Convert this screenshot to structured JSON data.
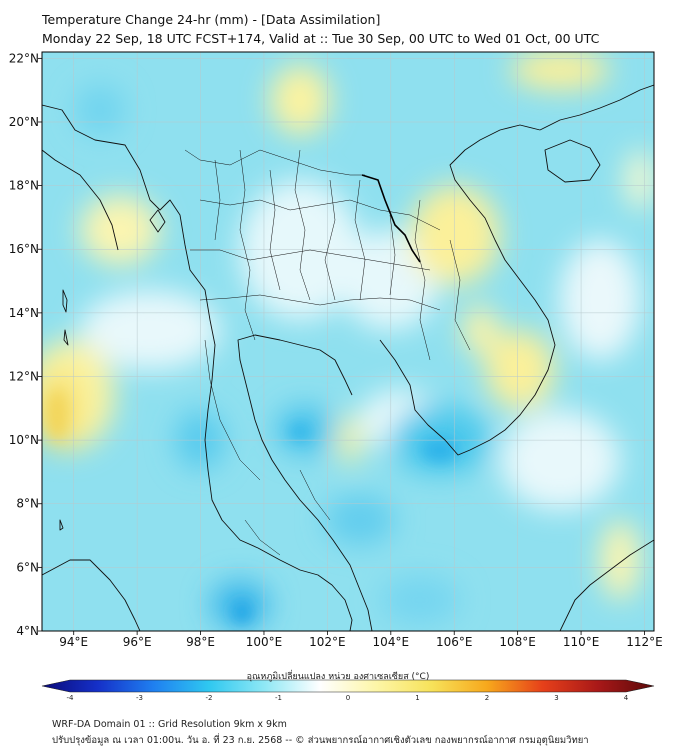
{
  "header": {
    "title": "Temperature Change 24-hr (mm) - [Data Assimilation]",
    "subtitle": "Monday 22 Sep, 18 UTC FCST+174, Valid at :: Tue 30 Sep, 00 UTC to Wed 01 Oct, 00 UTC"
  },
  "map": {
    "lon_range": [
      93,
      112.3
    ],
    "lat_range": [
      4,
      22.2
    ],
    "lon_ticks": [
      "94°E",
      "96°E",
      "98°E",
      "100°E",
      "102°E",
      "104°E",
      "106°E",
      "108°E",
      "110°E",
      "112°E"
    ],
    "lon_values": [
      94,
      96,
      98,
      100,
      102,
      104,
      106,
      108,
      110,
      112
    ],
    "lat_ticks": [
      "4°N",
      "6°N",
      "8°N",
      "10°N",
      "12°N",
      "14°N",
      "16°N",
      "18°N",
      "20°N",
      "22°N"
    ],
    "lat_values": [
      4,
      6,
      8,
      10,
      12,
      14,
      16,
      18,
      20,
      22
    ],
    "grid": true,
    "background_color": "#8fe0ef"
  },
  "colorbar": {
    "label": "อุณหภูมิเปลี่ยนแปลง หน่วย องศาเซลเซียส (°C)",
    "ticks": [
      "-4",
      "-3",
      "-2",
      "-1",
      "0",
      "1",
      "2",
      "3",
      "4"
    ],
    "tick_values": [
      -4,
      -3,
      -2,
      -1,
      0,
      1,
      2,
      3,
      4
    ],
    "colors": [
      "#0a0a78",
      "#1530c8",
      "#1f7ff0",
      "#2fc8f0",
      "#8fe8f5",
      "#ffffff",
      "#fdf6a8",
      "#f7e25a",
      "#f7a81c",
      "#e6401a",
      "#a81818",
      "#5a0a0a"
    ]
  },
  "footer": {
    "line1": "WRF-DA Domain 01 :: Grid Resolution 9km x 9km",
    "line2": "ปรับปรุงข้อมูล ณ เวลา 01:00น. วัน อ. ที่ 23 ก.ย. 2568 -- © ส่วนพยากรณ์อากาศเชิงตัวเลข กองพยากรณ์อากาศ กรมอุตุนิยมวิทยา"
  }
}
